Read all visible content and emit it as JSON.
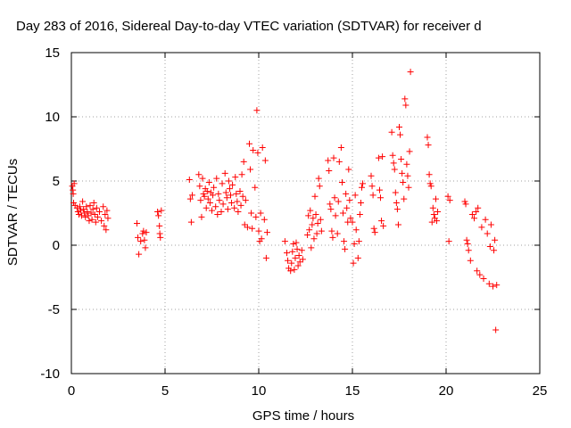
{
  "chart_data": {
    "type": "scatter",
    "title": "Day 283 of 2016, Sidereal Day-to-day VTEC variation (SDTVAR) for receiver d",
    "xlabel": "GPS time / hours",
    "ylabel": "SDTVAR / TECUs",
    "xlim": [
      0,
      25
    ],
    "ylim": [
      -10,
      15
    ],
    "xticks": [
      "0",
      "5",
      "10",
      "15",
      "20",
      "25"
    ],
    "yticks": [
      "-10",
      "-5",
      "0",
      "5",
      "10",
      "15"
    ],
    "grid": true,
    "marker": "+",
    "marker_color": "#ff0000",
    "series": [
      {
        "name": "SDTVAR",
        "points": [
          [
            0.05,
            4.6
          ],
          [
            0.08,
            4.3
          ],
          [
            0.1,
            4.0
          ],
          [
            0.12,
            3.3
          ],
          [
            0.15,
            4.8
          ],
          [
            0.2,
            3.1
          ],
          [
            0.3,
            2.9
          ],
          [
            0.35,
            2.6
          ],
          [
            0.4,
            2.4
          ],
          [
            0.45,
            3.0
          ],
          [
            0.5,
            2.7
          ],
          [
            0.55,
            2.3
          ],
          [
            0.6,
            3.4
          ],
          [
            0.65,
            2.8
          ],
          [
            0.7,
            2.5
          ],
          [
            0.75,
            2.2
          ],
          [
            0.8,
            3.0
          ],
          [
            0.85,
            2.6
          ],
          [
            0.9,
            2.3
          ],
          [
            0.95,
            1.9
          ],
          [
            1.0,
            3.1
          ],
          [
            1.05,
            2.5
          ],
          [
            1.1,
            2.0
          ],
          [
            1.15,
            2.8
          ],
          [
            1.2,
            3.3
          ],
          [
            1.25,
            2.4
          ],
          [
            1.3,
            1.8
          ],
          [
            1.35,
            2.9
          ],
          [
            1.4,
            2.2
          ],
          [
            1.5,
            2.6
          ],
          [
            1.6,
            1.9
          ],
          [
            1.7,
            3.0
          ],
          [
            1.75,
            1.5
          ],
          [
            1.8,
            2.4
          ],
          [
            1.85,
            1.2
          ],
          [
            1.9,
            2.7
          ],
          [
            1.95,
            2.1
          ],
          [
            3.5,
            1.7
          ],
          [
            3.55,
            0.6
          ],
          [
            3.6,
            -0.7
          ],
          [
            3.7,
            0.3
          ],
          [
            3.8,
            0.9
          ],
          [
            3.85,
            1.1
          ],
          [
            3.9,
            0.4
          ],
          [
            3.95,
            -0.2
          ],
          [
            4.0,
            1.0
          ],
          [
            4.6,
            2.6
          ],
          [
            4.65,
            2.3
          ],
          [
            4.7,
            1.5
          ],
          [
            4.72,
            0.9
          ],
          [
            4.75,
            0.6
          ],
          [
            4.8,
            2.7
          ],
          [
            6.3,
            5.1
          ],
          [
            6.35,
            3.6
          ],
          [
            6.4,
            1.8
          ],
          [
            6.45,
            3.9
          ],
          [
            6.8,
            5.5
          ],
          [
            6.85,
            4.6
          ],
          [
            6.9,
            3.5
          ],
          [
            6.95,
            2.2
          ],
          [
            7.0,
            5.2
          ],
          [
            7.05,
            4.0
          ],
          [
            7.1,
            3.8
          ],
          [
            7.15,
            4.4
          ],
          [
            7.2,
            2.9
          ],
          [
            7.25,
            4.2
          ],
          [
            7.3,
            3.6
          ],
          [
            7.35,
            4.9
          ],
          [
            7.4,
            3.3
          ],
          [
            7.45,
            4.1
          ],
          [
            7.5,
            2.7
          ],
          [
            7.55,
            3.9
          ],
          [
            7.6,
            4.5
          ],
          [
            7.7,
            3.0
          ],
          [
            7.75,
            5.2
          ],
          [
            7.8,
            2.4
          ],
          [
            7.85,
            4.0
          ],
          [
            7.9,
            3.5
          ],
          [
            8.0,
            2.6
          ],
          [
            8.05,
            4.8
          ],
          [
            8.1,
            3.2
          ],
          [
            8.2,
            5.6
          ],
          [
            8.25,
            4.1
          ],
          [
            8.3,
            3.7
          ],
          [
            8.35,
            2.8
          ],
          [
            8.4,
            5.0
          ],
          [
            8.45,
            4.4
          ],
          [
            8.5,
            3.9
          ],
          [
            8.55,
            3.3
          ],
          [
            8.6,
            4.7
          ],
          [
            8.7,
            2.9
          ],
          [
            8.75,
            5.3
          ],
          [
            8.8,
            4.0
          ],
          [
            8.85,
            3.4
          ],
          [
            8.9,
            2.6
          ],
          [
            9.0,
            4.2
          ],
          [
            9.05,
            3.1
          ],
          [
            9.1,
            5.5
          ],
          [
            9.15,
            3.8
          ],
          [
            9.2,
            6.5
          ],
          [
            9.25,
            1.6
          ],
          [
            9.3,
            3.5
          ],
          [
            9.4,
            1.4
          ],
          [
            9.5,
            7.9
          ],
          [
            9.55,
            5.9
          ],
          [
            9.6,
            2.5
          ],
          [
            9.65,
            1.3
          ],
          [
            9.7,
            7.4
          ],
          [
            9.8,
            4.5
          ],
          [
            9.85,
            2.2
          ],
          [
            9.9,
            10.5
          ],
          [
            9.95,
            7.2
          ],
          [
            10.0,
            1.1
          ],
          [
            10.05,
            0.3
          ],
          [
            10.1,
            2.5
          ],
          [
            10.15,
            0.5
          ],
          [
            10.2,
            7.6
          ],
          [
            10.3,
            2.0
          ],
          [
            10.35,
            6.6
          ],
          [
            10.4,
            -1.0
          ],
          [
            10.45,
            1.0
          ],
          [
            11.4,
            0.3
          ],
          [
            11.5,
            -0.6
          ],
          [
            11.55,
            -1.2
          ],
          [
            11.6,
            -1.8
          ],
          [
            11.7,
            -2.0
          ],
          [
            11.75,
            -1.4
          ],
          [
            11.8,
            -0.5
          ],
          [
            11.85,
            0.1
          ],
          [
            11.9,
            -1.9
          ],
          [
            11.95,
            -1.0
          ],
          [
            12.0,
            0.2
          ],
          [
            12.05,
            -0.3
          ],
          [
            12.1,
            -1.6
          ],
          [
            12.15,
            -0.8
          ],
          [
            12.2,
            -1.3
          ],
          [
            12.3,
            -0.4
          ],
          [
            12.35,
            -1.1
          ],
          [
            12.6,
            0.8
          ],
          [
            12.65,
            2.3
          ],
          [
            12.7,
            1.2
          ],
          [
            12.75,
            2.7
          ],
          [
            12.8,
            -0.2
          ],
          [
            12.85,
            1.6
          ],
          [
            12.9,
            2.1
          ],
          [
            12.95,
            0.5
          ],
          [
            13.0,
            3.8
          ],
          [
            13.05,
            2.4
          ],
          [
            13.1,
            0.9
          ],
          [
            13.15,
            1.7
          ],
          [
            13.2,
            5.2
          ],
          [
            13.25,
            4.6
          ],
          [
            13.3,
            2.0
          ],
          [
            13.35,
            1.1
          ],
          [
            13.7,
            6.6
          ],
          [
            13.75,
            5.8
          ],
          [
            13.8,
            3.2
          ],
          [
            13.85,
            2.8
          ],
          [
            13.9,
            1.1
          ],
          [
            13.95,
            0.6
          ],
          [
            14.0,
            6.8
          ],
          [
            14.05,
            3.7
          ],
          [
            14.1,
            2.3
          ],
          [
            14.2,
            0.9
          ],
          [
            14.25,
            3.4
          ],
          [
            14.3,
            6.5
          ],
          [
            14.4,
            7.6
          ],
          [
            14.45,
            4.9
          ],
          [
            14.5,
            2.5
          ],
          [
            14.55,
            0.3
          ],
          [
            14.6,
            -0.3
          ],
          [
            14.65,
            4.0
          ],
          [
            14.7,
            2.9
          ],
          [
            14.75,
            1.8
          ],
          [
            14.8,
            5.9
          ],
          [
            14.85,
            3.5
          ],
          [
            14.9,
            2.1
          ],
          [
            15.0,
            1.8
          ],
          [
            15.05,
            -1.4
          ],
          [
            15.1,
            0.1
          ],
          [
            15.15,
            3.9
          ],
          [
            15.2,
            1.2
          ],
          [
            15.3,
            -1.0
          ],
          [
            15.35,
            0.3
          ],
          [
            15.4,
            2.4
          ],
          [
            15.45,
            3.3
          ],
          [
            15.5,
            4.5
          ],
          [
            15.55,
            4.8
          ],
          [
            16.0,
            5.4
          ],
          [
            16.05,
            4.6
          ],
          [
            16.1,
            3.9
          ],
          [
            16.15,
            1.3
          ],
          [
            16.2,
            1.0
          ],
          [
            16.4,
            6.8
          ],
          [
            16.45,
            4.3
          ],
          [
            16.5,
            3.7
          ],
          [
            16.55,
            1.9
          ],
          [
            16.6,
            6.9
          ],
          [
            16.65,
            1.5
          ],
          [
            17.1,
            8.8
          ],
          [
            17.15,
            7.0
          ],
          [
            17.2,
            6.4
          ],
          [
            17.25,
            5.9
          ],
          [
            17.3,
            4.1
          ],
          [
            17.35,
            3.3
          ],
          [
            17.4,
            2.8
          ],
          [
            17.45,
            1.6
          ],
          [
            17.5,
            9.2
          ],
          [
            17.55,
            8.6
          ],
          [
            17.6,
            6.7
          ],
          [
            17.65,
            5.6
          ],
          [
            17.7,
            4.9
          ],
          [
            17.75,
            3.6
          ],
          [
            17.8,
            11.4
          ],
          [
            17.85,
            10.9
          ],
          [
            17.9,
            6.3
          ],
          [
            17.95,
            5.4
          ],
          [
            18.0,
            4.5
          ],
          [
            18.05,
            7.3
          ],
          [
            18.1,
            13.5
          ],
          [
            19.0,
            8.4
          ],
          [
            19.05,
            7.8
          ],
          [
            19.1,
            5.5
          ],
          [
            19.15,
            4.8
          ],
          [
            19.2,
            4.6
          ],
          [
            19.25,
            1.8
          ],
          [
            19.3,
            2.9
          ],
          [
            19.35,
            2.4
          ],
          [
            19.4,
            2.1
          ],
          [
            19.45,
            3.6
          ],
          [
            19.5,
            1.9
          ],
          [
            19.55,
            2.6
          ],
          [
            20.1,
            3.8
          ],
          [
            20.15,
            0.3
          ],
          [
            20.2,
            3.5
          ],
          [
            21.0,
            3.4
          ],
          [
            21.05,
            3.2
          ],
          [
            21.1,
            0.4
          ],
          [
            21.15,
            0.1
          ],
          [
            21.2,
            -0.4
          ],
          [
            21.3,
            -1.2
          ],
          [
            21.4,
            2.4
          ],
          [
            21.5,
            2.1
          ],
          [
            21.6,
            2.6
          ],
          [
            21.65,
            -2.0
          ],
          [
            21.7,
            2.9
          ],
          [
            21.8,
            -2.3
          ],
          [
            21.9,
            1.4
          ],
          [
            22.0,
            -2.6
          ],
          [
            22.1,
            2.0
          ],
          [
            22.2,
            0.9
          ],
          [
            22.3,
            -3.0
          ],
          [
            22.35,
            -0.1
          ],
          [
            22.4,
            1.6
          ],
          [
            22.5,
            -3.2
          ],
          [
            22.55,
            -0.4
          ],
          [
            22.6,
            0.4
          ],
          [
            22.65,
            -6.6
          ],
          [
            22.7,
            -3.1
          ]
        ]
      }
    ]
  }
}
